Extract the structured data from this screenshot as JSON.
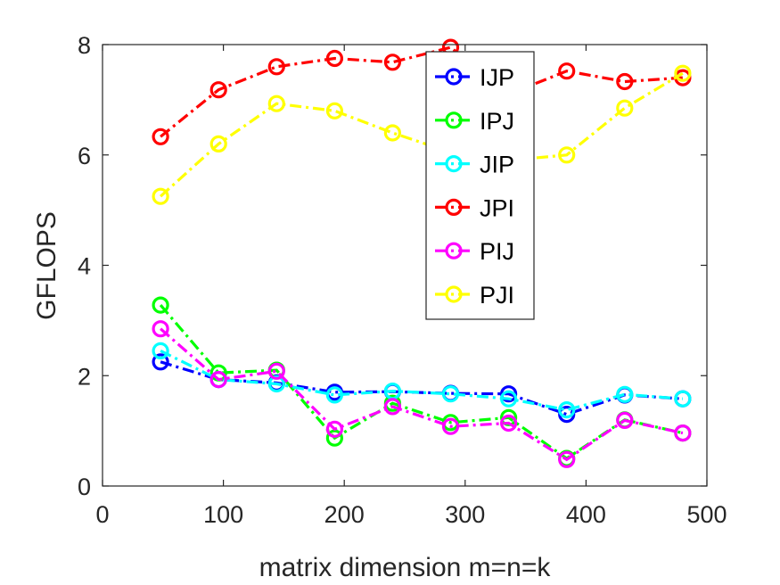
{
  "chart_data": {
    "type": "line",
    "title": "",
    "xlabel": "matrix dimension m=n=k",
    "ylabel": "GFLOPS",
    "xlim": [
      0,
      500
    ],
    "ylim": [
      0,
      8
    ],
    "xticks": [
      0,
      100,
      200,
      300,
      400,
      500
    ],
    "yticks": [
      0,
      2,
      4,
      6,
      8
    ],
    "grid": false,
    "legend_position": "top-center",
    "x": [
      48,
      96,
      144,
      192,
      240,
      288,
      336,
      384,
      432,
      480
    ],
    "series": [
      {
        "name": "IJP",
        "color": "#0000ff",
        "values": [
          2.25,
          1.93,
          1.87,
          1.7,
          1.71,
          1.68,
          1.67,
          1.3,
          1.65,
          1.58
        ]
      },
      {
        "name": "IPJ",
        "color": "#00ff00",
        "values": [
          3.28,
          2.05,
          2.1,
          0.87,
          1.5,
          1.15,
          1.24,
          0.5,
          1.2,
          0.96
        ]
      },
      {
        "name": "JIP",
        "color": "#00ffff",
        "values": [
          2.45,
          1.93,
          1.85,
          1.65,
          1.72,
          1.67,
          1.58,
          1.38,
          1.66,
          1.58
        ]
      },
      {
        "name": "JPI",
        "color": "#ff0000",
        "values": [
          6.33,
          7.18,
          7.6,
          7.75,
          7.68,
          7.95,
          7.1,
          7.52,
          7.33,
          7.4
        ]
      },
      {
        "name": "PIJ",
        "color": "#ff00ff",
        "values": [
          2.85,
          1.93,
          2.08,
          1.03,
          1.44,
          1.08,
          1.14,
          0.48,
          1.19,
          0.96
        ]
      },
      {
        "name": "PJI",
        "color": "#ffff00",
        "values": [
          5.25,
          6.2,
          6.93,
          6.8,
          6.4,
          6.05,
          5.9,
          6.0,
          6.85,
          7.48
        ]
      }
    ]
  }
}
